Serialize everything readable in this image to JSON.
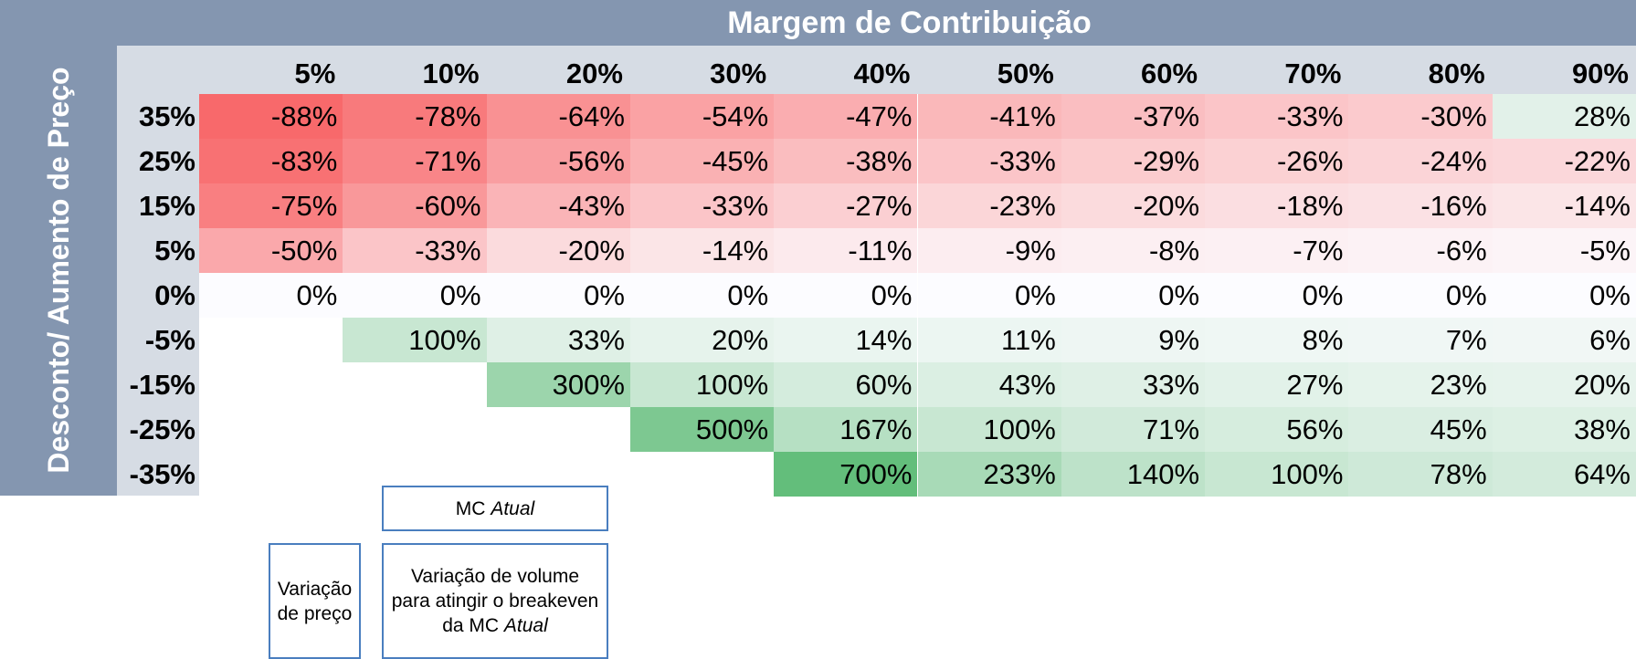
{
  "chart_data": {
    "type": "heatmap",
    "title": "Margem de Contribuição",
    "ylabel": "Desconto/ Aumento de Preço",
    "columns": [
      "5%",
      "10%",
      "20%",
      "30%",
      "40%",
      "50%",
      "60%",
      "70%",
      "80%",
      "90%"
    ],
    "column_values": [
      5,
      10,
      20,
      30,
      40,
      50,
      60,
      70,
      80,
      90
    ],
    "rows": [
      "35%",
      "25%",
      "15%",
      "5%",
      "0%",
      "-5%",
      "-15%",
      "-25%",
      "-35%"
    ],
    "row_values": [
      35,
      25,
      15,
      5,
      0,
      -5,
      -15,
      -25,
      -35
    ],
    "values": [
      [
        -88,
        -78,
        -64,
        -54,
        -47,
        -41,
        -37,
        -33,
        -30,
        28
      ],
      [
        -83,
        -71,
        -56,
        -45,
        -38,
        -33,
        -29,
        -26,
        -24,
        -22
      ],
      [
        -75,
        -60,
        -43,
        -33,
        -27,
        -23,
        -20,
        -18,
        -16,
        -14
      ],
      [
        -50,
        -33,
        -20,
        -14,
        -11,
        -9,
        -8,
        -7,
        -6,
        -5
      ],
      [
        0,
        0,
        0,
        0,
        0,
        0,
        0,
        0,
        0,
        0
      ],
      [
        null,
        100,
        33,
        20,
        14,
        11,
        9,
        8,
        7,
        6
      ],
      [
        null,
        null,
        300,
        100,
        60,
        43,
        33,
        27,
        23,
        20
      ],
      [
        null,
        null,
        null,
        500,
        167,
        100,
        71,
        56,
        45,
        38
      ],
      [
        null,
        null,
        null,
        null,
        700,
        233,
        140,
        100,
        78,
        64
      ]
    ],
    "value_suffix": "%",
    "colors": {
      "negative": "#f8696b",
      "zero": "#fcfcff",
      "positive": "#63be7b",
      "header_bar": "#8496b0",
      "header_light": "#d6dce4"
    }
  },
  "legend": {
    "mc_box": {
      "prefix": "MC",
      "emphasis": "Atual"
    },
    "price_box": {
      "text": "Variação de preço"
    },
    "volume_box": {
      "text": "Variação de volume para atingir o breakeven da MC",
      "emphasis": "Atual"
    }
  }
}
